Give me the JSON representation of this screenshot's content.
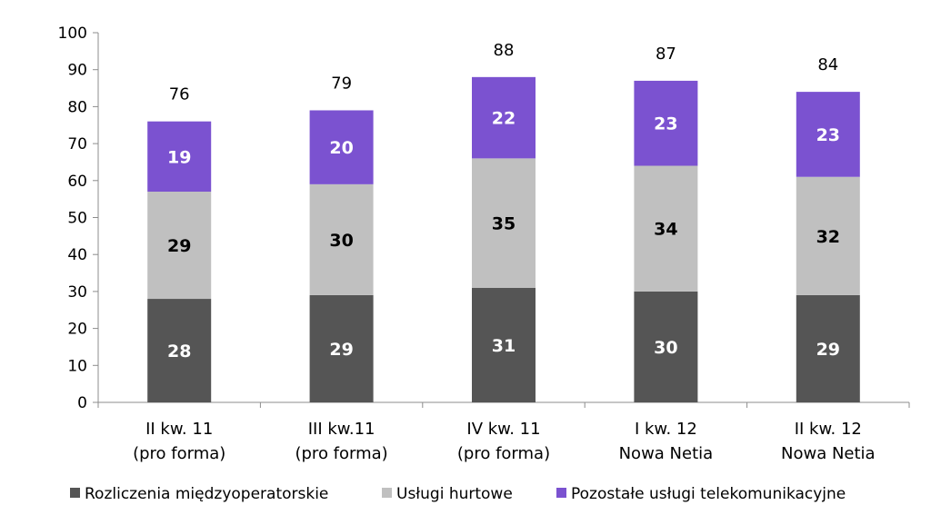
{
  "chart_data": {
    "type": "bar",
    "stacked": true,
    "categories": [
      [
        "II kw. 11",
        "(pro forma)"
      ],
      [
        "III kw.11",
        "(pro forma)"
      ],
      [
        "IV kw. 11",
        "(pro forma)"
      ],
      [
        "I kw. 12",
        "Nowa Netia"
      ],
      [
        "II kw. 12",
        "Nowa Netia"
      ]
    ],
    "series": [
      {
        "name": "Rozliczenia międzyoperatorskie",
        "values": [
          28,
          29,
          31,
          30,
          29
        ],
        "color": "#555555",
        "label_color": "#ffffff"
      },
      {
        "name": "Usługi hurtowe",
        "values": [
          29,
          30,
          35,
          34,
          32
        ],
        "color": "#c0c0c0",
        "label_color": "#000000"
      },
      {
        "name": "Pozostałe usługi telekomunikacyjne",
        "values": [
          19,
          20,
          22,
          23,
          23
        ],
        "color": "#7b52d0",
        "label_color": "#ffffff"
      }
    ],
    "totals": [
      76,
      79,
      88,
      87,
      84
    ],
    "ylim": [
      0,
      100
    ],
    "yticks": [
      0,
      10,
      20,
      30,
      40,
      50,
      60,
      70,
      80,
      90,
      100
    ],
    "grid": false,
    "legend_position": "bottom"
  }
}
